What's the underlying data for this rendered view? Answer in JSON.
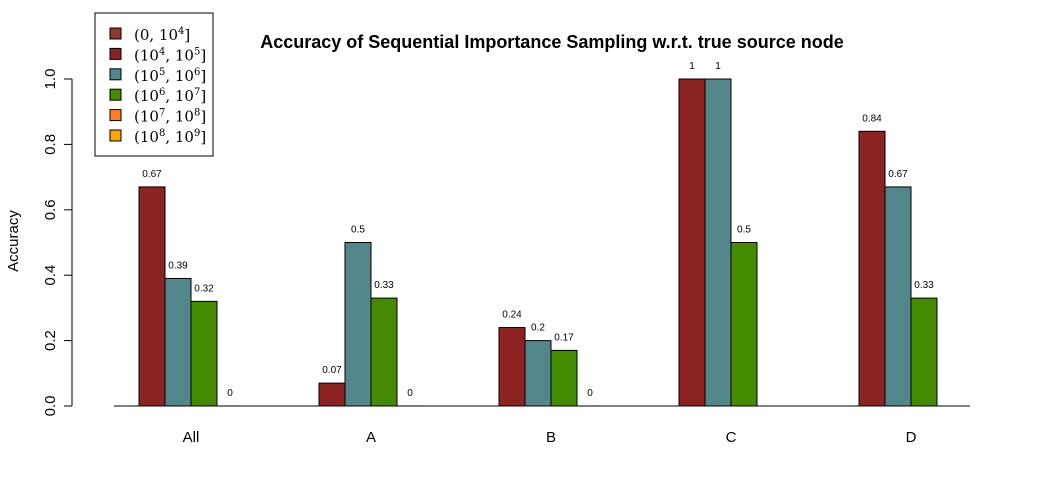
{
  "chart_data": {
    "type": "bar",
    "title": "Accuracy of Sequential Importance Sampling w.r.t. true source node",
    "xlabel": "",
    "ylabel": "Accuracy",
    "ylim": [
      0,
      1
    ],
    "yticks": [
      "0.0",
      "0.2",
      "0.4",
      "0.6",
      "0.8",
      "1.0"
    ],
    "categories": [
      "All",
      "A",
      "B",
      "C",
      "D"
    ],
    "legend_position": "top-left",
    "grid": false,
    "series": [
      {
        "name": "(0, 10^4]",
        "color": "#8b3a2f",
        "values": [
          null,
          null,
          null,
          null,
          null
        ],
        "labels": [
          "",
          "",
          "",
          "",
          ""
        ]
      },
      {
        "name": "(10^4, 10^5]",
        "color": "#8b2323",
        "values": [
          0.67,
          0.07,
          0.24,
          1,
          0.84
        ],
        "labels": [
          "0.67",
          "0.07",
          "0.24",
          "1",
          "0.84"
        ]
      },
      {
        "name": "(10^5, 10^6]",
        "color": "#53868b",
        "values": [
          0.39,
          0.5,
          0.2,
          1,
          0.67
        ],
        "labels": [
          "0.39",
          "0.5",
          "0.2",
          "1",
          "0.67"
        ]
      },
      {
        "name": "(10^6, 10^7]",
        "color": "#458b00",
        "values": [
          0.32,
          0.33,
          0.17,
          0.5,
          0.33
        ],
        "labels": [
          "0.32",
          "0.33",
          "0.17",
          "0.5",
          "0.33"
        ]
      },
      {
        "name": "(10^7, 10^8]",
        "color": "#ff7f24",
        "values": [
          0,
          0,
          0,
          null,
          null
        ],
        "labels": [
          "0",
          "0",
          "0",
          "",
          ""
        ]
      },
      {
        "name": "(10^8, 10^9]",
        "color": "#ffa500",
        "values": [
          null,
          null,
          null,
          null,
          null
        ],
        "labels": [
          "",
          "",
          "",
          "",
          ""
        ]
      }
    ],
    "legend": [
      {
        "base_open": "(0, 10",
        "exp1": "4",
        "close": "]",
        "color": "#8b3a2f"
      },
      {
        "base_open": "(10",
        "exp1": "4",
        "mid": ", 10",
        "exp2": "5",
        "close": "]",
        "color": "#8b2323"
      },
      {
        "base_open": "(10",
        "exp1": "5",
        "mid": ", 10",
        "exp2": "6",
        "close": "]",
        "color": "#53868b"
      },
      {
        "base_open": "(10",
        "exp1": "6",
        "mid": ", 10",
        "exp2": "7",
        "close": "]",
        "color": "#458b00"
      },
      {
        "base_open": "(10",
        "exp1": "7",
        "mid": ", 10",
        "exp2": "8",
        "close": "]",
        "color": "#ff7f24"
      },
      {
        "base_open": "(10",
        "exp1": "8",
        "mid": ", 10",
        "exp2": "9",
        "close": "]",
        "color": "#ffa500"
      }
    ]
  }
}
